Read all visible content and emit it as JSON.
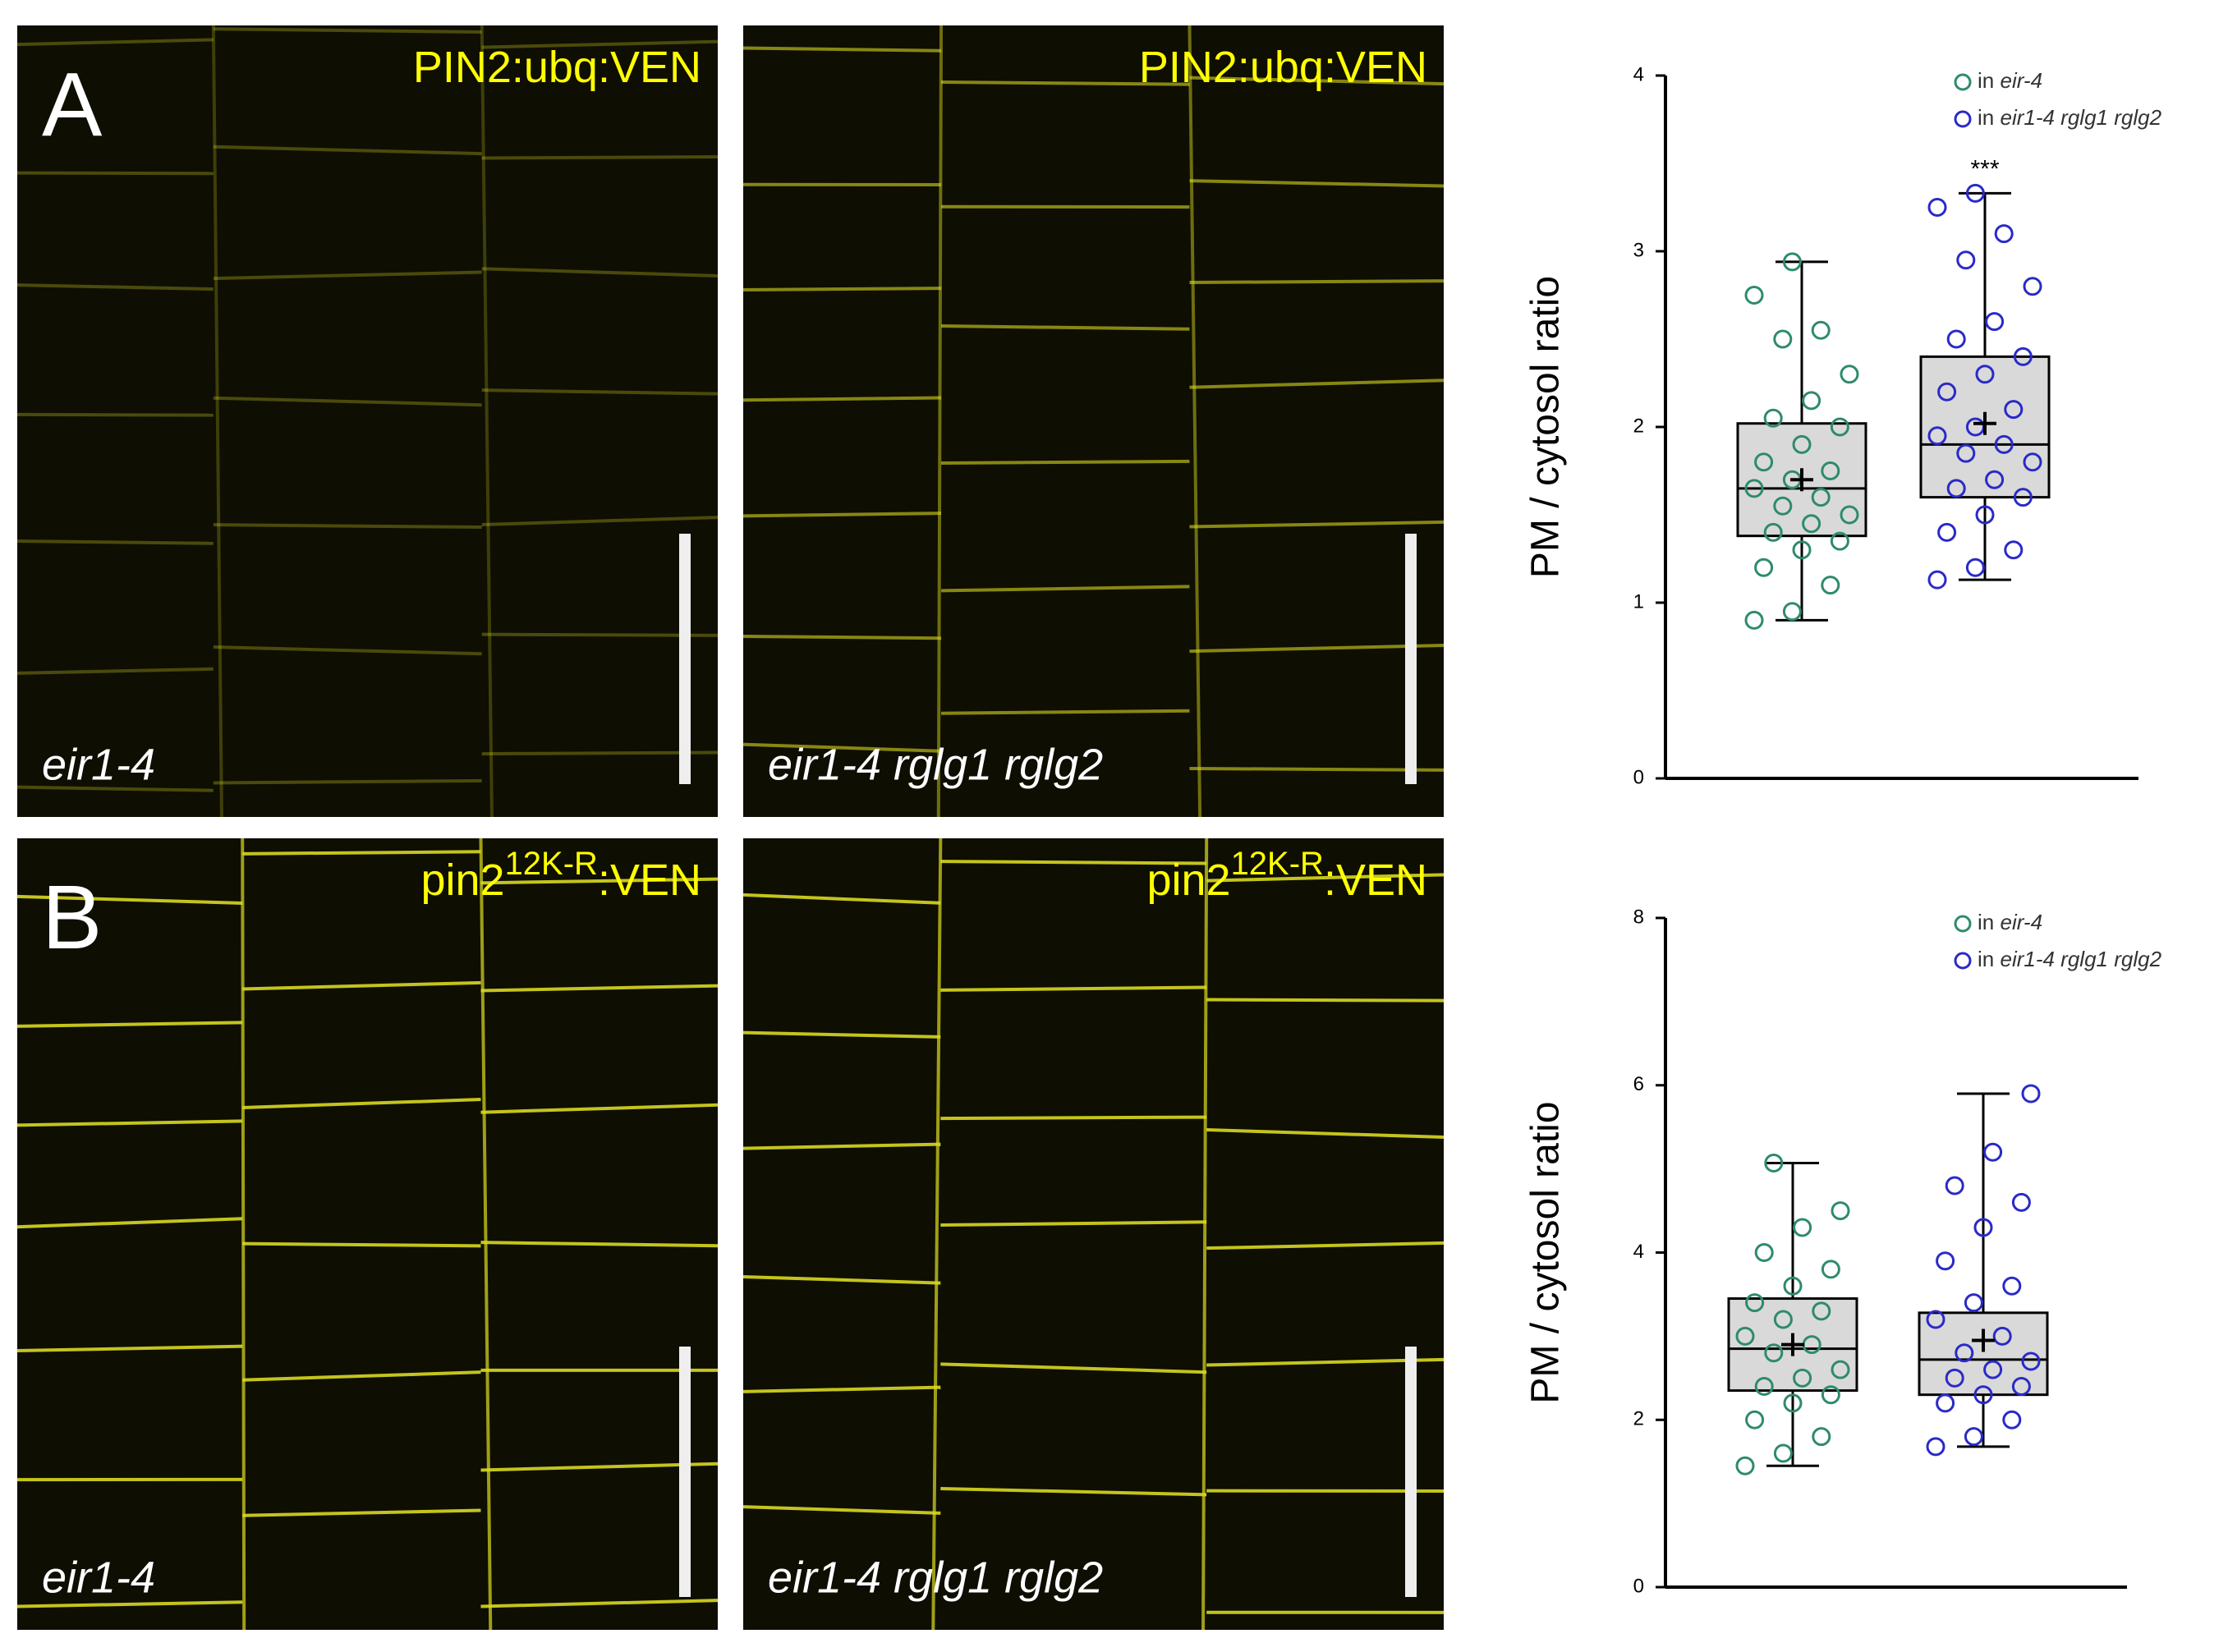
{
  "panels": [
    {
      "label": "A",
      "construct": "PIN2:ubq:VEN",
      "genotype": "eir1-4"
    },
    {
      "construct": "PIN2:ubq:VEN",
      "genotype": "eir1-4 rglg1 rglg2"
    },
    {
      "label": "B",
      "construct": "pin2",
      "superscript": "12K-R",
      "suffix": ":VEN",
      "genotype": "eir1-4"
    },
    {
      "construct": "pin2",
      "superscript": "12K-R",
      "suffix": ":VEN",
      "genotype": "eir1-4 rglg1 rglg2"
    }
  ],
  "chart_data": [
    {
      "type": "box",
      "ylabel": "PM / cytosol ratio",
      "ylim": [
        0,
        4
      ],
      "yticks": [
        0,
        1,
        2,
        3,
        4
      ],
      "legend_prefix": "in",
      "annotation": "***",
      "series": [
        {
          "name": "eir-4",
          "color": "#2e8b6a",
          "whislo": 0.9,
          "q1": 1.38,
          "med": 1.65,
          "q3": 2.02,
          "whishi": 2.94,
          "mean": 1.7,
          "points": [
            0.9,
            0.95,
            1.1,
            1.2,
            1.3,
            1.35,
            1.4,
            1.45,
            1.5,
            1.55,
            1.6,
            1.65,
            1.7,
            1.75,
            1.8,
            1.9,
            2.0,
            2.05,
            2.15,
            2.3,
            2.5,
            2.55,
            2.75,
            2.94
          ]
        },
        {
          "name": "eir1-4 rglg1 rglg2",
          "color": "#2a2ac8",
          "whislo": 1.13,
          "q1": 1.6,
          "med": 1.9,
          "q3": 2.4,
          "whishi": 3.33,
          "mean": 2.02,
          "points": [
            1.13,
            1.2,
            1.3,
            1.4,
            1.5,
            1.6,
            1.65,
            1.7,
            1.8,
            1.85,
            1.9,
            1.95,
            2.0,
            2.1,
            2.2,
            2.3,
            2.4,
            2.5,
            2.6,
            2.8,
            2.95,
            3.1,
            3.25,
            3.33
          ]
        }
      ]
    },
    {
      "type": "box",
      "ylabel": "PM / cytosol ratio",
      "ylim": [
        0,
        8
      ],
      "yticks": [
        0,
        2,
        4,
        6,
        8
      ],
      "legend_prefix": "in",
      "series": [
        {
          "name": "eir-4",
          "color": "#2e8b6a",
          "whislo": 1.45,
          "q1": 2.35,
          "med": 2.85,
          "q3": 3.45,
          "whishi": 5.07,
          "mean": 2.9,
          "points": [
            1.45,
            1.6,
            1.8,
            2.0,
            2.2,
            2.3,
            2.4,
            2.5,
            2.6,
            2.8,
            2.9,
            3.0,
            3.2,
            3.3,
            3.4,
            3.6,
            3.8,
            4.0,
            4.3,
            4.5,
            5.07
          ]
        },
        {
          "name": "eir1-4 rglg1 rglg2",
          "color": "#2a2ac8",
          "whislo": 1.68,
          "q1": 2.3,
          "med": 2.72,
          "q3": 3.28,
          "whishi": 5.9,
          "mean": 2.95,
          "points": [
            1.68,
            1.8,
            2.0,
            2.2,
            2.3,
            2.4,
            2.5,
            2.6,
            2.7,
            2.8,
            3.0,
            3.2,
            3.4,
            3.6,
            3.9,
            4.3,
            4.6,
            4.8,
            5.2,
            5.9
          ]
        }
      ]
    }
  ]
}
